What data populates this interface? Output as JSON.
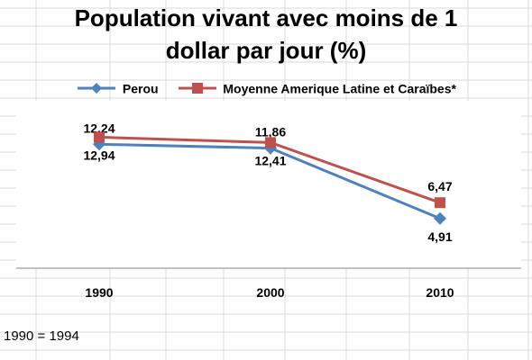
{
  "chart_data": {
    "type": "line",
    "title_lines": [
      "Population vivant avec moins de 1",
      "dollar par jour (%)"
    ],
    "categories": [
      "1990",
      "2000",
      "2010"
    ],
    "series": [
      {
        "name": "Perou",
        "values": [
          12.24,
          11.86,
          4.91
        ],
        "labels": [
          "12,24",
          "11,86",
          "4,91"
        ],
        "label_side": [
          "above",
          "above",
          "below"
        ],
        "color": "#4f81bd",
        "marker": "diamond"
      },
      {
        "name": "Moyenne Amerique Latine et Caraïbes*",
        "values": [
          12.94,
          12.41,
          6.47
        ],
        "labels": [
          "12,94",
          "12,41",
          "6,47"
        ],
        "label_side": [
          "below",
          "below",
          "above"
        ],
        "color": "#c0504d",
        "marker": "square"
      }
    ],
    "ylim": [
      0,
      16
    ],
    "grid": false,
    "legend": "top"
  },
  "footnote": "1990 = 1994"
}
